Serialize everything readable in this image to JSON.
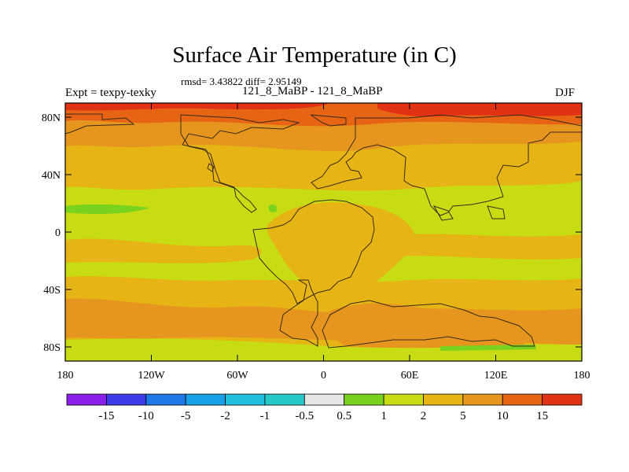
{
  "header": {
    "title": "Surface Air Temperature (in C)",
    "stats": "rmsd= 3.43822 diff= 2.95149",
    "experiment": "Expt = texpy-texky",
    "period": "121_8_MaBP - 121_8_MaBP",
    "season": "DJF"
  },
  "axes": {
    "lat_ticks": [
      "80N",
      "40N",
      "0",
      "40S",
      "80S"
    ],
    "lon_ticks": [
      "180",
      "120W",
      "60W",
      "0",
      "60E",
      "120E",
      "180"
    ]
  },
  "legend": {
    "colors": [
      "#8a1ee6",
      "#3c3ce6",
      "#1e78e6",
      "#19a0e6",
      "#23bedc",
      "#28c8c8",
      "#e6e6e6",
      "#78d21e",
      "#c8dc14",
      "#e6b414",
      "#e6961e",
      "#e66414",
      "#e13214"
    ],
    "labels": [
      "-15",
      "-10",
      "-5",
      "-2",
      "-1",
      "-0.5",
      "0.5",
      "1",
      "2",
      "5",
      "10",
      "15"
    ]
  },
  "map_colors": {
    "very_warm": "#e13214",
    "warm": "#e66414",
    "orange": "#e6961e",
    "gold": "#e6b414",
    "yellow_green": "#c8dc14",
    "green": "#78d21e"
  }
}
